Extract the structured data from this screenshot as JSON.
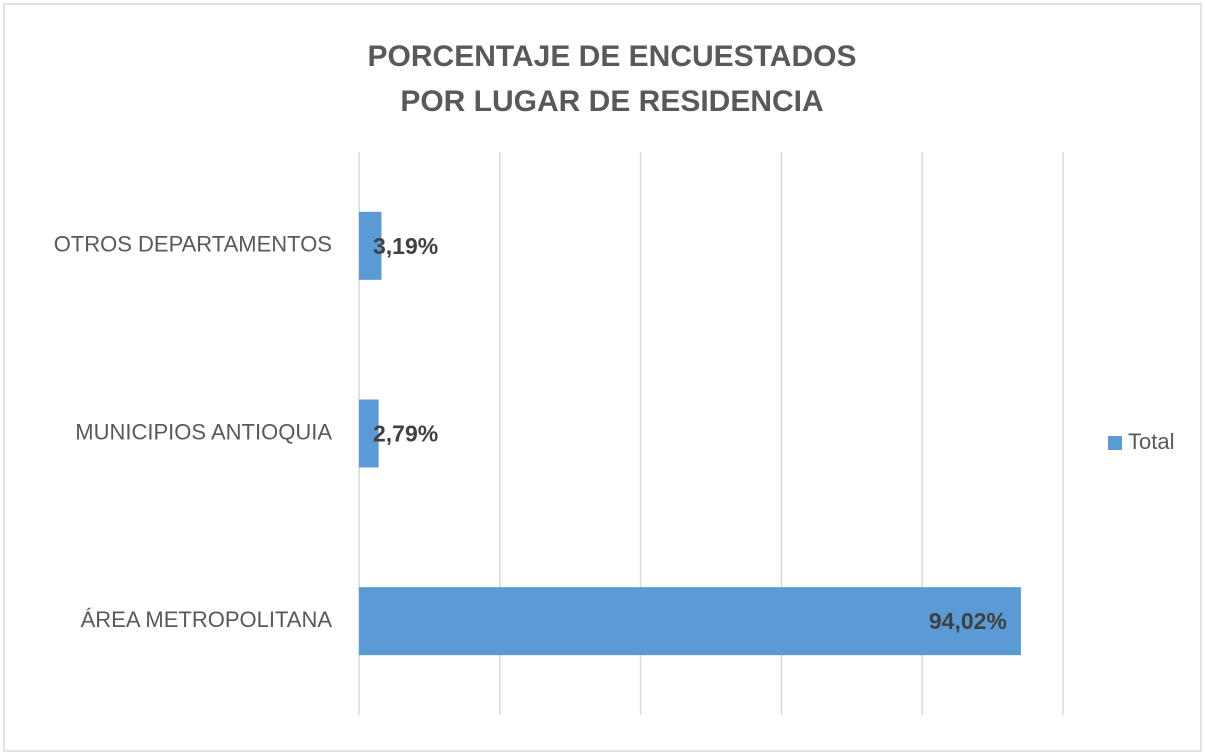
{
  "chart_data": {
    "type": "bar",
    "orientation": "horizontal",
    "title": [
      "PORCENTAJE DE ENCUESTADOS",
      "POR LUGAR DE RESIDENCIA"
    ],
    "categories": [
      "OTROS DEPARTAMENTOS",
      "MUNICIPIOS ANTIOQUIA",
      "ÁREA METROPOLITANA"
    ],
    "series": [
      {
        "name": "Total",
        "color": "#5b9bd5",
        "values": [
          3.19,
          2.79,
          94.02
        ],
        "value_labels": [
          "3,19%",
          "2,79%",
          "94,02%"
        ]
      }
    ],
    "xlim": [
      0,
      100
    ],
    "xticks": [
      0,
      20,
      40,
      60,
      80,
      100
    ],
    "grid": true,
    "legend": "right"
  }
}
